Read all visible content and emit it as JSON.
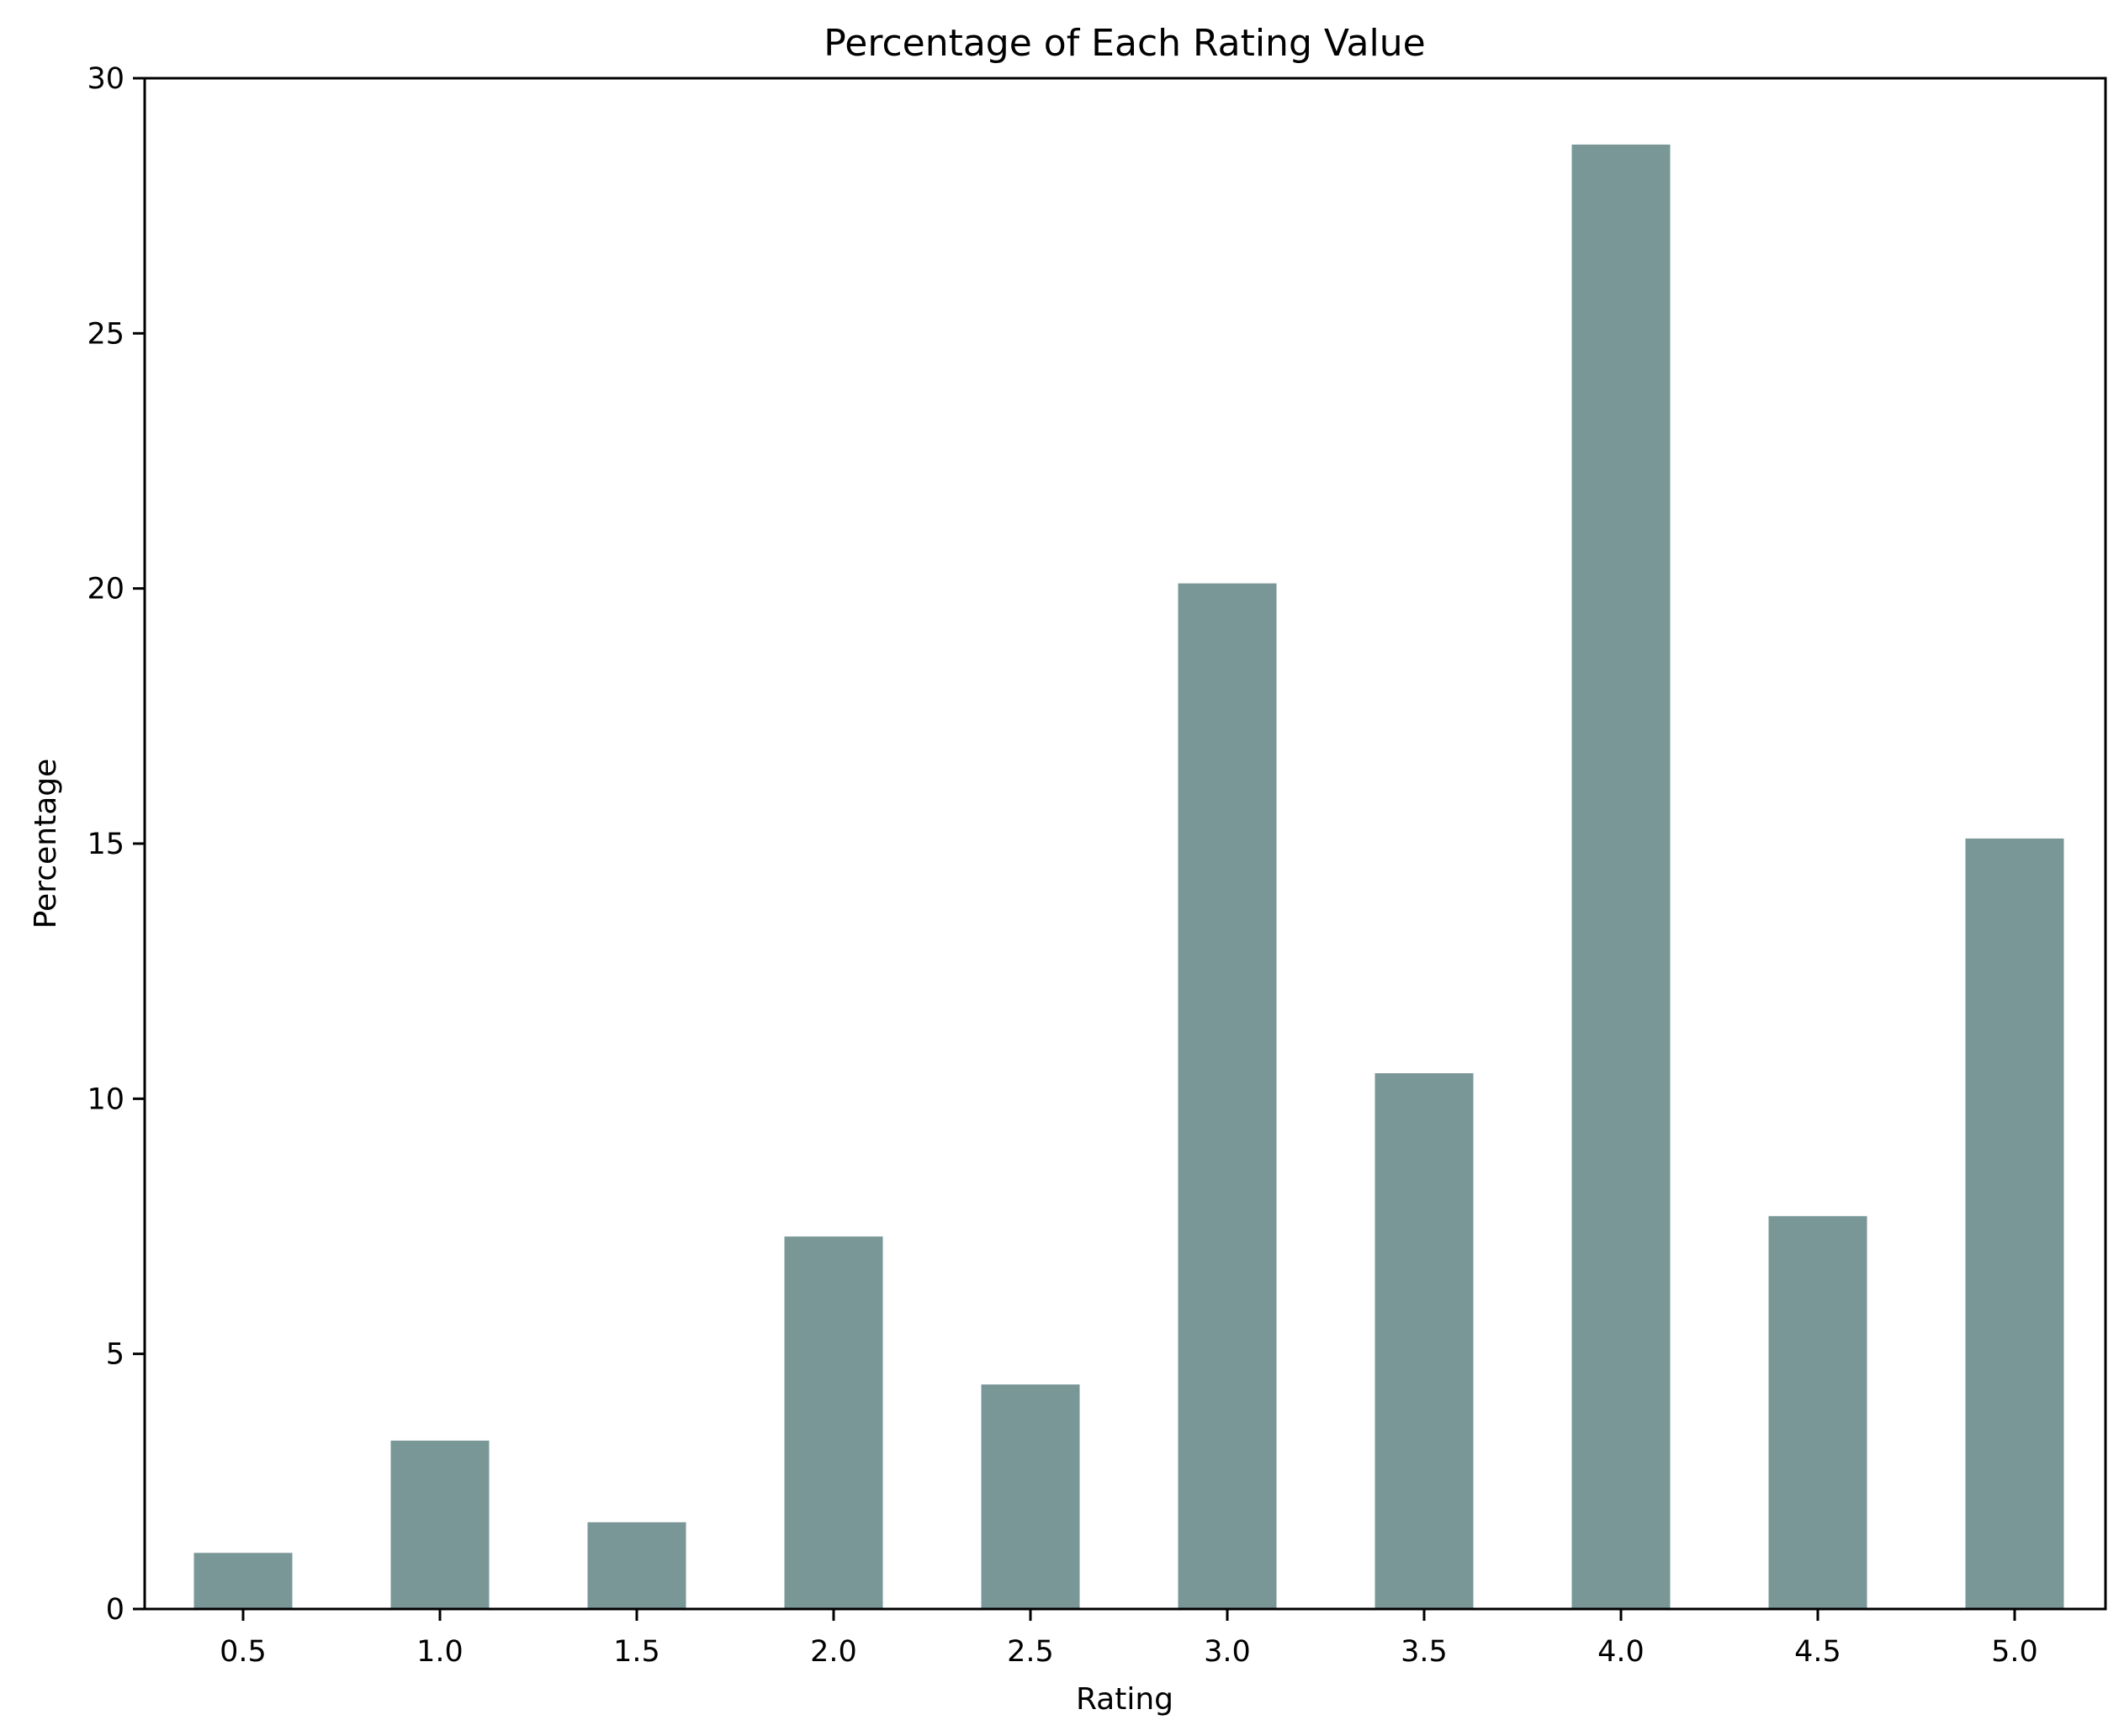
{
  "chart_data": {
    "type": "bar",
    "title": "Percentage of Each Rating Value",
    "xlabel": "Rating",
    "ylabel": "Percentage",
    "categories": [
      "0.5",
      "1.0",
      "1.5",
      "2.0",
      "2.5",
      "3.0",
      "3.5",
      "4.0",
      "4.5",
      "5.0"
    ],
    "values": [
      1.1,
      3.3,
      1.7,
      7.3,
      4.4,
      20.1,
      10.5,
      28.7,
      7.7,
      15.1
    ],
    "ylim": [
      0,
      30
    ],
    "yticks": [
      "0",
      "5",
      "10",
      "15",
      "20",
      "25",
      "30"
    ],
    "bar_color": "#7a9797",
    "grid": false,
    "legend": "none"
  }
}
